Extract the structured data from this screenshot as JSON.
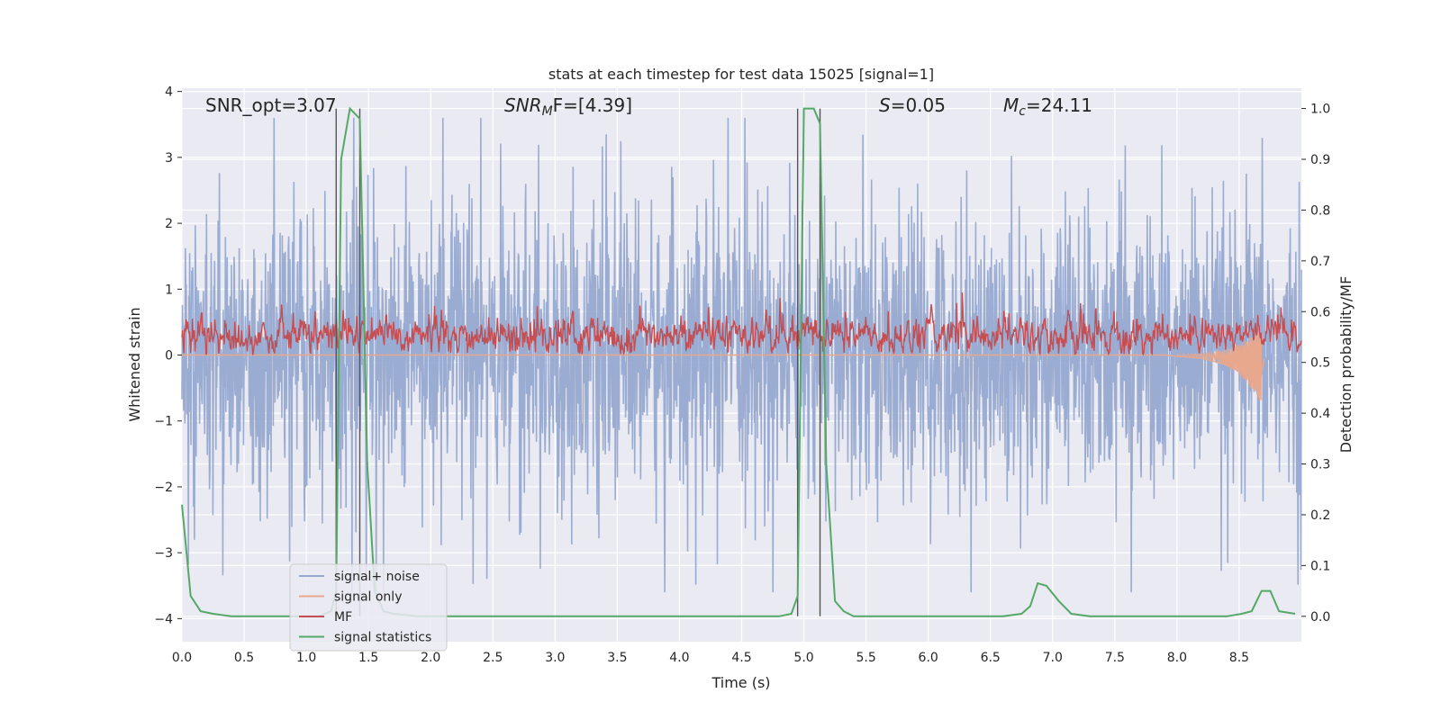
{
  "chart_data": {
    "type": "line",
    "title": "stats at each timestep for test data 15025 [signal=1]",
    "xlabel": "Time (s)",
    "ylabel": "Whitened strain",
    "ylabel_right": "Detection probability/MF",
    "xlim": [
      0.0,
      9.0
    ],
    "ylim": [
      -4.35,
      4.05
    ],
    "ylim_right": [
      -0.05,
      1.04
    ],
    "x_ticks": [
      "0.0",
      "0.5",
      "1.0",
      "1.5",
      "2.0",
      "2.5",
      "3.0",
      "3.5",
      "4.0",
      "4.5",
      "5.0",
      "5.5",
      "6.0",
      "6.5",
      "7.0",
      "7.5",
      "8.0",
      "8.5"
    ],
    "y_ticks": [
      "4",
      "3",
      "2",
      "1",
      "0",
      "−1",
      "−2",
      "−3",
      "−4"
    ],
    "y_ticks_right": [
      "1.0",
      "0.9",
      "0.8",
      "0.7",
      "0.6",
      "0.5",
      "0.4",
      "0.3",
      "0.2",
      "0.1",
      "0.0"
    ],
    "grid": true,
    "legend_position": "lower-left",
    "annotations": {
      "snr_opt": "SNR_opt=3.07",
      "snr_mf_main": "SNR",
      "snr_mf_sub": "M",
      "snr_mf_rest": "F=[4.39]",
      "s_italic": "S",
      "s_rest": "=0.05",
      "mc_main": "M",
      "mc_sub": "c",
      "mc_rest": "=24.11"
    },
    "vertical_lines_x": [
      1.24,
      1.43,
      4.95,
      5.13
    ],
    "series": [
      {
        "name": "signal+ noise",
        "color": "#97a9d0",
        "axis": "left",
        "style": "noise band ±1.5 baseline, spikes to ±3.3"
      },
      {
        "name": "signal only",
        "color": "#e8a88e",
        "axis": "left",
        "x": [
          0.0,
          7.9,
          8.2,
          8.4,
          8.5,
          8.6,
          8.65,
          8.7
        ],
        "values": [
          0.0,
          0.0,
          -0.05,
          -0.15,
          -0.25,
          -0.35,
          -0.6,
          -0.05
        ]
      },
      {
        "name": "MF",
        "color": "#c44e52",
        "axis": "left",
        "style": "noisy trace ~0.3 ±0.25, peaks to 0.95"
      },
      {
        "name": "signal statistics",
        "color": "#55a868",
        "axis": "right",
        "x": [
          0.0,
          0.07,
          0.15,
          0.25,
          0.4,
          1.0,
          1.1,
          1.2,
          1.24,
          1.28,
          1.35,
          1.43,
          1.49,
          1.55,
          1.62,
          1.7,
          1.9,
          4.0,
          4.8,
          4.9,
          4.95,
          5.0,
          5.08,
          5.13,
          5.18,
          5.25,
          5.32,
          5.4,
          5.6,
          6.6,
          6.75,
          6.82,
          6.88,
          6.95,
          7.05,
          7.15,
          7.3,
          8.4,
          8.52,
          8.6,
          8.68,
          8.75,
          8.82,
          8.95
        ],
        "values": [
          0.22,
          0.04,
          0.01,
          0.005,
          0.0,
          0.0,
          0.0,
          0.01,
          0.05,
          0.9,
          1.0,
          0.98,
          0.3,
          0.05,
          0.01,
          0.005,
          0.0,
          0.0,
          0.0,
          0.005,
          0.04,
          1.0,
          1.0,
          0.97,
          0.3,
          0.03,
          0.01,
          0.0,
          0.0,
          0.0,
          0.005,
          0.02,
          0.065,
          0.06,
          0.03,
          0.005,
          0.0,
          0.0,
          0.005,
          0.01,
          0.05,
          0.05,
          0.01,
          0.005
        ]
      }
    ]
  }
}
